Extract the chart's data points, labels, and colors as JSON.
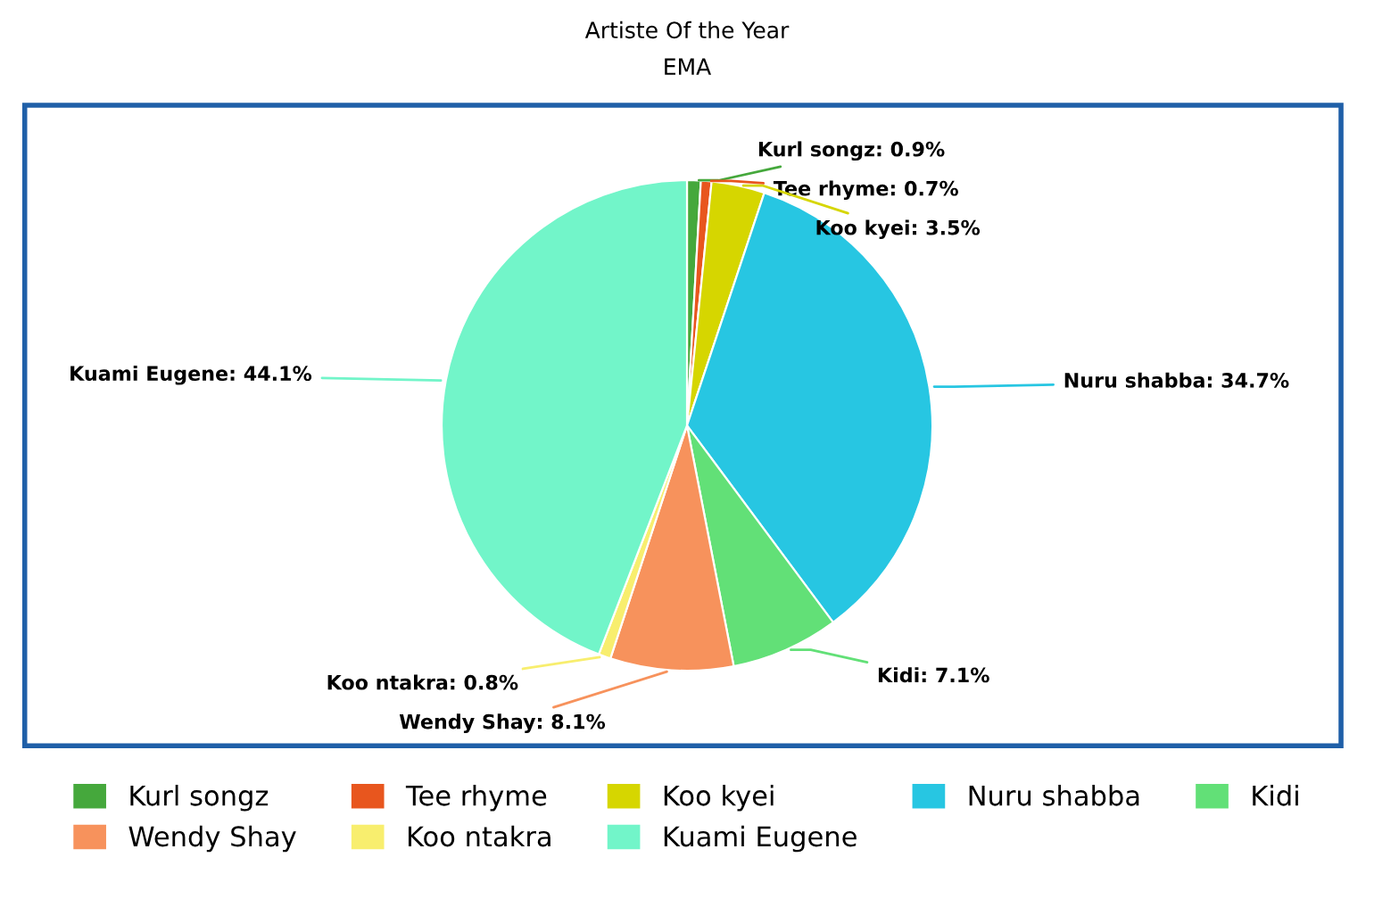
{
  "chart_data": {
    "type": "pie",
    "title": "Artiste Of the Year",
    "subtitle": "EMA",
    "categories": [
      "Kurl songz",
      "Tee rhyme",
      "Koo kyei",
      "Nuru shabba",
      "Kidi",
      "Wendy Shay",
      "Koo ntakra",
      "Kuami Eugene"
    ],
    "values": [
      0.9,
      0.7,
      3.5,
      34.7,
      7.1,
      8.1,
      0.8,
      44.1
    ],
    "value_labels": [
      "Kurl songz: 0.9%",
      "Tee rhyme: 0.7%",
      "Koo kyei: 3.5%",
      "Nuru shabba: 34.7%",
      "Kidi: 7.1%",
      "Wendy Shay: 8.1%",
      "Koo ntakra: 0.8%",
      "Kuami Eugene: 44.1%"
    ],
    "colors": [
      "#45a83c",
      "#e8561e",
      "#d6d600",
      "#27c6e2",
      "#62e077",
      "#f7925c",
      "#f8ee6e",
      "#72f5c9"
    ],
    "legend": "bottom"
  }
}
